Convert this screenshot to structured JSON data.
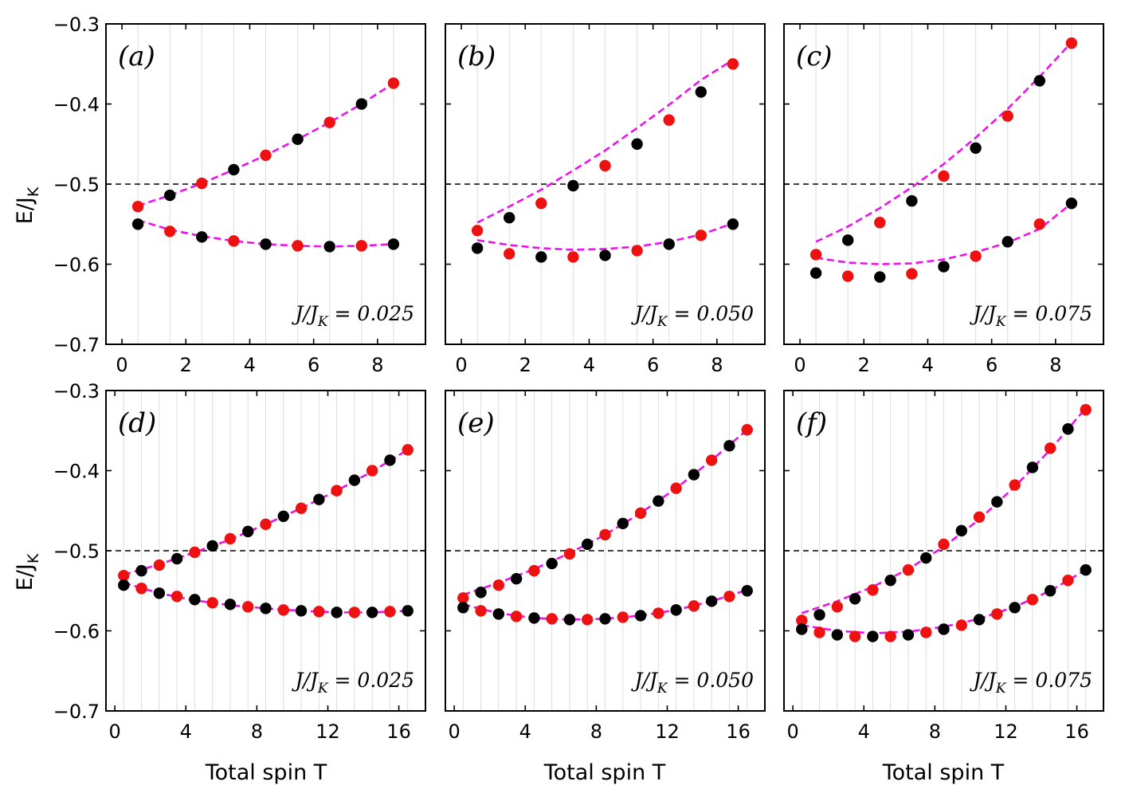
{
  "figure": {
    "ylabel": "E/J",
    "ylabel_sub": "K",
    "xlabel": "Total spin T",
    "reference_line": -0.5
  },
  "colors": {
    "fit": "#ee11ee",
    "black_points": "#000000",
    "red_points": "#ee1111",
    "reference": "#000000",
    "grid": "#dddddd"
  },
  "chart_data": [
    {
      "panel": "(a)",
      "type": "scatter",
      "param": "J/J_K = 0.025",
      "xlim": [
        -0.5,
        9.5
      ],
      "ylim": [
        -0.7,
        -0.3
      ],
      "xticks": [
        0,
        2,
        4,
        6,
        8
      ],
      "yticks": [
        -0.7,
        -0.6,
        -0.5,
        -0.4,
        -0.3
      ],
      "ytick_labels": [
        "−0.7",
        "−0.6",
        "−0.5",
        "−0.4",
        "−0.3"
      ],
      "series": [
        {
          "name": "upper black",
          "color": "black",
          "x": [
            1.5,
            3.5,
            5.5,
            7.5
          ],
          "y": [
            -0.514,
            -0.482,
            -0.444,
            -0.4
          ]
        },
        {
          "name": "upper red",
          "color": "red",
          "x": [
            0.5,
            2.5,
            4.5,
            6.5,
            8.5
          ],
          "y": [
            -0.528,
            -0.499,
            -0.464,
            -0.423,
            -0.374
          ]
        },
        {
          "name": "lower black",
          "color": "black",
          "x": [
            0.5,
            2.5,
            4.5,
            6.5,
            8.5
          ],
          "y": [
            -0.55,
            -0.566,
            -0.575,
            -0.578,
            -0.575
          ]
        },
        {
          "name": "lower red",
          "color": "red",
          "x": [
            1.5,
            3.5,
            5.5,
            7.5
          ],
          "y": [
            -0.559,
            -0.571,
            -0.577,
            -0.577
          ]
        }
      ],
      "fits": [
        {
          "name": "upper fit",
          "x": [
            0.5,
            1.5,
            2.5,
            3.5,
            4.5,
            5.5,
            6.5,
            7.5,
            8.5
          ],
          "y": [
            -0.527,
            -0.514,
            -0.499,
            -0.482,
            -0.464,
            -0.444,
            -0.423,
            -0.4,
            -0.374
          ]
        },
        {
          "name": "lower fit",
          "x": [
            0.5,
            1.5,
            2.5,
            3.5,
            4.5,
            5.5,
            6.5,
            7.5,
            8.5
          ],
          "y": [
            -0.545,
            -0.557,
            -0.565,
            -0.571,
            -0.575,
            -0.577,
            -0.578,
            -0.577,
            -0.575
          ]
        }
      ]
    },
    {
      "panel": "(b)",
      "type": "scatter",
      "param": "J/J_K = 0.050",
      "xlim": [
        -0.5,
        9.5
      ],
      "ylim": [
        -0.7,
        -0.3
      ],
      "xticks": [
        0,
        2,
        4,
        6,
        8
      ],
      "yticks": [
        -0.7,
        -0.6,
        -0.5,
        -0.4,
        -0.3
      ],
      "ytick_labels": [],
      "series": [
        {
          "name": "upper black",
          "color": "black",
          "x": [
            1.5,
            3.5,
            5.5,
            7.5
          ],
          "y": [
            -0.542,
            -0.502,
            -0.45,
            -0.385
          ]
        },
        {
          "name": "upper red",
          "color": "red",
          "x": [
            0.5,
            2.5,
            4.5,
            6.5,
            8.5
          ],
          "y": [
            -0.558,
            -0.524,
            -0.477,
            -0.42,
            -0.35
          ]
        },
        {
          "name": "lower black",
          "color": "black",
          "x": [
            0.5,
            2.5,
            4.5,
            6.5,
            8.5
          ],
          "y": [
            -0.58,
            -0.591,
            -0.589,
            -0.575,
            -0.55
          ]
        },
        {
          "name": "lower red",
          "color": "red",
          "x": [
            1.5,
            3.5,
            5.5,
            7.5
          ],
          "y": [
            -0.587,
            -0.591,
            -0.583,
            -0.564
          ]
        }
      ],
      "fits": [
        {
          "name": "upper fit",
          "x": [
            0.5,
            1.5,
            2.5,
            3.5,
            4.5,
            5.5,
            6.5,
            7.5,
            8.5
          ],
          "y": [
            -0.548,
            -0.528,
            -0.507,
            -0.483,
            -0.458,
            -0.43,
            -0.401,
            -0.37,
            -0.345
          ]
        },
        {
          "name": "lower fit",
          "x": [
            0.5,
            1.5,
            2.5,
            3.5,
            4.5,
            5.5,
            6.5,
            7.5,
            8.5
          ],
          "y": [
            -0.57,
            -0.576,
            -0.58,
            -0.582,
            -0.581,
            -0.578,
            -0.572,
            -0.563,
            -0.549
          ]
        }
      ]
    },
    {
      "panel": "(c)",
      "type": "scatter",
      "param": "J/J_K = 0.075",
      "xlim": [
        -0.5,
        9.5
      ],
      "ylim": [
        -0.7,
        -0.3
      ],
      "xticks": [
        0,
        2,
        4,
        6,
        8
      ],
      "yticks": [
        -0.7,
        -0.6,
        -0.5,
        -0.4,
        -0.3
      ],
      "ytick_labels": [],
      "series": [
        {
          "name": "upper black",
          "color": "black",
          "x": [
            1.5,
            3.5,
            5.5,
            7.5
          ],
          "y": [
            -0.57,
            -0.521,
            -0.455,
            -0.371
          ]
        },
        {
          "name": "upper red",
          "color": "red",
          "x": [
            0.5,
            2.5,
            4.5,
            6.5,
            8.5
          ],
          "y": [
            -0.588,
            -0.548,
            -0.49,
            -0.415,
            -0.324
          ]
        },
        {
          "name": "lower black",
          "color": "black",
          "x": [
            0.5,
            2.5,
            4.5,
            6.5,
            8.5
          ],
          "y": [
            -0.611,
            -0.616,
            -0.603,
            -0.572,
            -0.524
          ]
        },
        {
          "name": "lower red",
          "color": "red",
          "x": [
            1.5,
            3.5,
            5.5,
            7.5
          ],
          "y": [
            -0.615,
            -0.612,
            -0.59,
            -0.55
          ]
        }
      ],
      "fits": [
        {
          "name": "upper fit",
          "x": [
            0.5,
            1.5,
            2.5,
            3.5,
            4.5,
            5.5,
            6.5,
            7.5,
            8.5
          ],
          "y": [
            -0.572,
            -0.553,
            -0.53,
            -0.504,
            -0.475,
            -0.442,
            -0.406,
            -0.366,
            -0.323
          ]
        },
        {
          "name": "lower fit",
          "x": [
            0.5,
            1.5,
            2.5,
            3.5,
            4.5,
            5.5,
            6.5,
            7.5,
            8.5
          ],
          "y": [
            -0.592,
            -0.598,
            -0.6,
            -0.599,
            -0.594,
            -0.585,
            -0.573,
            -0.556,
            -0.524
          ]
        }
      ]
    },
    {
      "panel": "(d)",
      "type": "scatter",
      "param": "J/J_K = 0.025",
      "xlim": [
        -0.5,
        17.5
      ],
      "ylim": [
        -0.7,
        -0.3
      ],
      "xticks": [
        0,
        4,
        8,
        12,
        16
      ],
      "yticks": [
        -0.7,
        -0.6,
        -0.5,
        -0.4,
        -0.3
      ],
      "ytick_labels": [
        "−0.7",
        "−0.6",
        "−0.5",
        "−0.4",
        "−0.3"
      ],
      "series": [
        {
          "name": "upper black",
          "color": "black",
          "x": [
            1.5,
            3.5,
            5.5,
            7.5,
            9.5,
            11.5,
            13.5,
            15.5
          ],
          "y": [
            -0.525,
            -0.51,
            -0.494,
            -0.476,
            -0.457,
            -0.436,
            -0.412,
            -0.387
          ]
        },
        {
          "name": "upper red",
          "color": "red",
          "x": [
            0.5,
            2.5,
            4.5,
            6.5,
            8.5,
            10.5,
            12.5,
            14.5,
            16.5
          ],
          "y": [
            -0.531,
            -0.518,
            -0.502,
            -0.485,
            -0.467,
            -0.447,
            -0.425,
            -0.4,
            -0.374
          ]
        },
        {
          "name": "lower black",
          "color": "black",
          "x": [
            0.5,
            2.5,
            4.5,
            6.5,
            8.5,
            10.5,
            12.5,
            14.5,
            16.5
          ],
          "y": [
            -0.543,
            -0.553,
            -0.561,
            -0.567,
            -0.572,
            -0.575,
            -0.577,
            -0.577,
            -0.575
          ]
        },
        {
          "name": "lower red",
          "color": "red",
          "x": [
            1.5,
            3.5,
            5.5,
            7.5,
            9.5,
            11.5,
            13.5,
            15.5
          ],
          "y": [
            -0.547,
            -0.557,
            -0.565,
            -0.57,
            -0.574,
            -0.576,
            -0.577,
            -0.576
          ]
        }
      ],
      "fits": [
        {
          "name": "upper fit",
          "x": [
            0.5,
            2.5,
            4.5,
            6.5,
            8.5,
            10.5,
            12.5,
            14.5,
            16.5
          ],
          "y": [
            -0.53,
            -0.517,
            -0.502,
            -0.486,
            -0.467,
            -0.447,
            -0.425,
            -0.401,
            -0.374
          ]
        },
        {
          "name": "lower fit",
          "x": [
            0.5,
            2.5,
            4.5,
            6.5,
            8.5,
            10.5,
            12.5,
            14.5,
            16.5
          ],
          "y": [
            -0.54,
            -0.553,
            -0.562,
            -0.568,
            -0.572,
            -0.575,
            -0.577,
            -0.577,
            -0.575
          ]
        }
      ]
    },
    {
      "panel": "(e)",
      "type": "scatter",
      "param": "J/J_K = 0.050",
      "xlim": [
        -0.5,
        17.5
      ],
      "ylim": [
        -0.7,
        -0.3
      ],
      "xticks": [
        0,
        4,
        8,
        12,
        16
      ],
      "yticks": [
        -0.7,
        -0.6,
        -0.5,
        -0.4,
        -0.3
      ],
      "ytick_labels": [],
      "series": [
        {
          "name": "upper black",
          "color": "black",
          "x": [
            1.5,
            3.5,
            5.5,
            7.5,
            9.5,
            11.5,
            13.5,
            15.5
          ],
          "y": [
            -0.552,
            -0.535,
            -0.516,
            -0.492,
            -0.466,
            -0.438,
            -0.405,
            -0.369
          ]
        },
        {
          "name": "upper red",
          "color": "red",
          "x": [
            0.5,
            2.5,
            4.5,
            6.5,
            8.5,
            10.5,
            12.5,
            14.5,
            16.5
          ],
          "y": [
            -0.559,
            -0.543,
            -0.525,
            -0.504,
            -0.48,
            -0.453,
            -0.422,
            -0.387,
            -0.349
          ]
        },
        {
          "name": "lower black",
          "color": "black",
          "x": [
            0.5,
            2.5,
            4.5,
            6.5,
            8.5,
            10.5,
            12.5,
            14.5,
            16.5
          ],
          "y": [
            -0.571,
            -0.579,
            -0.584,
            -0.586,
            -0.585,
            -0.581,
            -0.574,
            -0.563,
            -0.55
          ]
        },
        {
          "name": "lower red",
          "color": "red",
          "x": [
            1.5,
            3.5,
            5.5,
            7.5,
            9.5,
            11.5,
            13.5,
            15.5
          ],
          "y": [
            -0.575,
            -0.582,
            -0.585,
            -0.586,
            -0.583,
            -0.578,
            -0.569,
            -0.557
          ]
        }
      ],
      "fits": [
        {
          "name": "upper fit",
          "x": [
            0.5,
            2.5,
            4.5,
            6.5,
            8.5,
            10.5,
            12.5,
            14.5,
            16.5
          ],
          "y": [
            -0.555,
            -0.54,
            -0.523,
            -0.503,
            -0.48,
            -0.453,
            -0.422,
            -0.387,
            -0.349
          ]
        },
        {
          "name": "lower fit",
          "x": [
            0.5,
            2.5,
            4.5,
            6.5,
            8.5,
            10.5,
            12.5,
            14.5,
            16.5
          ],
          "y": [
            -0.567,
            -0.578,
            -0.584,
            -0.586,
            -0.585,
            -0.581,
            -0.574,
            -0.563,
            -0.549
          ]
        }
      ]
    },
    {
      "panel": "(f)",
      "type": "scatter",
      "param": "J/J_K = 0.075",
      "xlim": [
        -0.5,
        17.5
      ],
      "ylim": [
        -0.7,
        -0.3
      ],
      "xticks": [
        0,
        4,
        8,
        12,
        16
      ],
      "yticks": [
        -0.7,
        -0.6,
        -0.5,
        -0.4,
        -0.3
      ],
      "ytick_labels": [],
      "series": [
        {
          "name": "upper black",
          "color": "black",
          "x": [
            1.5,
            3.5,
            5.5,
            7.5,
            9.5,
            11.5,
            13.5,
            15.5
          ],
          "y": [
            -0.58,
            -0.56,
            -0.537,
            -0.509,
            -0.475,
            -0.439,
            -0.396,
            -0.348
          ]
        },
        {
          "name": "upper red",
          "color": "red",
          "x": [
            0.5,
            2.5,
            4.5,
            6.5,
            8.5,
            10.5,
            12.5,
            14.5,
            16.5
          ],
          "y": [
            -0.587,
            -0.57,
            -0.549,
            -0.524,
            -0.492,
            -0.458,
            -0.418,
            -0.372,
            -0.324
          ]
        },
        {
          "name": "lower black",
          "color": "black",
          "x": [
            0.5,
            2.5,
            4.5,
            6.5,
            8.5,
            10.5,
            12.5,
            14.5,
            16.5
          ],
          "y": [
            -0.598,
            -0.605,
            -0.607,
            -0.605,
            -0.598,
            -0.586,
            -0.571,
            -0.55,
            -0.524
          ]
        },
        {
          "name": "lower red",
          "color": "red",
          "x": [
            1.5,
            3.5,
            5.5,
            7.5,
            9.5,
            11.5,
            13.5,
            15.5
          ],
          "y": [
            -0.602,
            -0.607,
            -0.607,
            -0.602,
            -0.593,
            -0.579,
            -0.561,
            -0.537
          ]
        }
      ],
      "fits": [
        {
          "name": "upper fit",
          "x": [
            0.5,
            2.5,
            4.5,
            6.5,
            8.5,
            10.5,
            12.5,
            14.5,
            16.5
          ],
          "y": [
            -0.578,
            -0.563,
            -0.545,
            -0.523,
            -0.495,
            -0.461,
            -0.42,
            -0.374,
            -0.322
          ]
        },
        {
          "name": "lower fit",
          "x": [
            0.5,
            2.5,
            4.5,
            6.5,
            8.5,
            10.5,
            12.5,
            14.5,
            16.5
          ],
          "y": [
            -0.593,
            -0.6,
            -0.603,
            -0.601,
            -0.595,
            -0.585,
            -0.57,
            -0.55,
            -0.524
          ]
        }
      ]
    }
  ]
}
